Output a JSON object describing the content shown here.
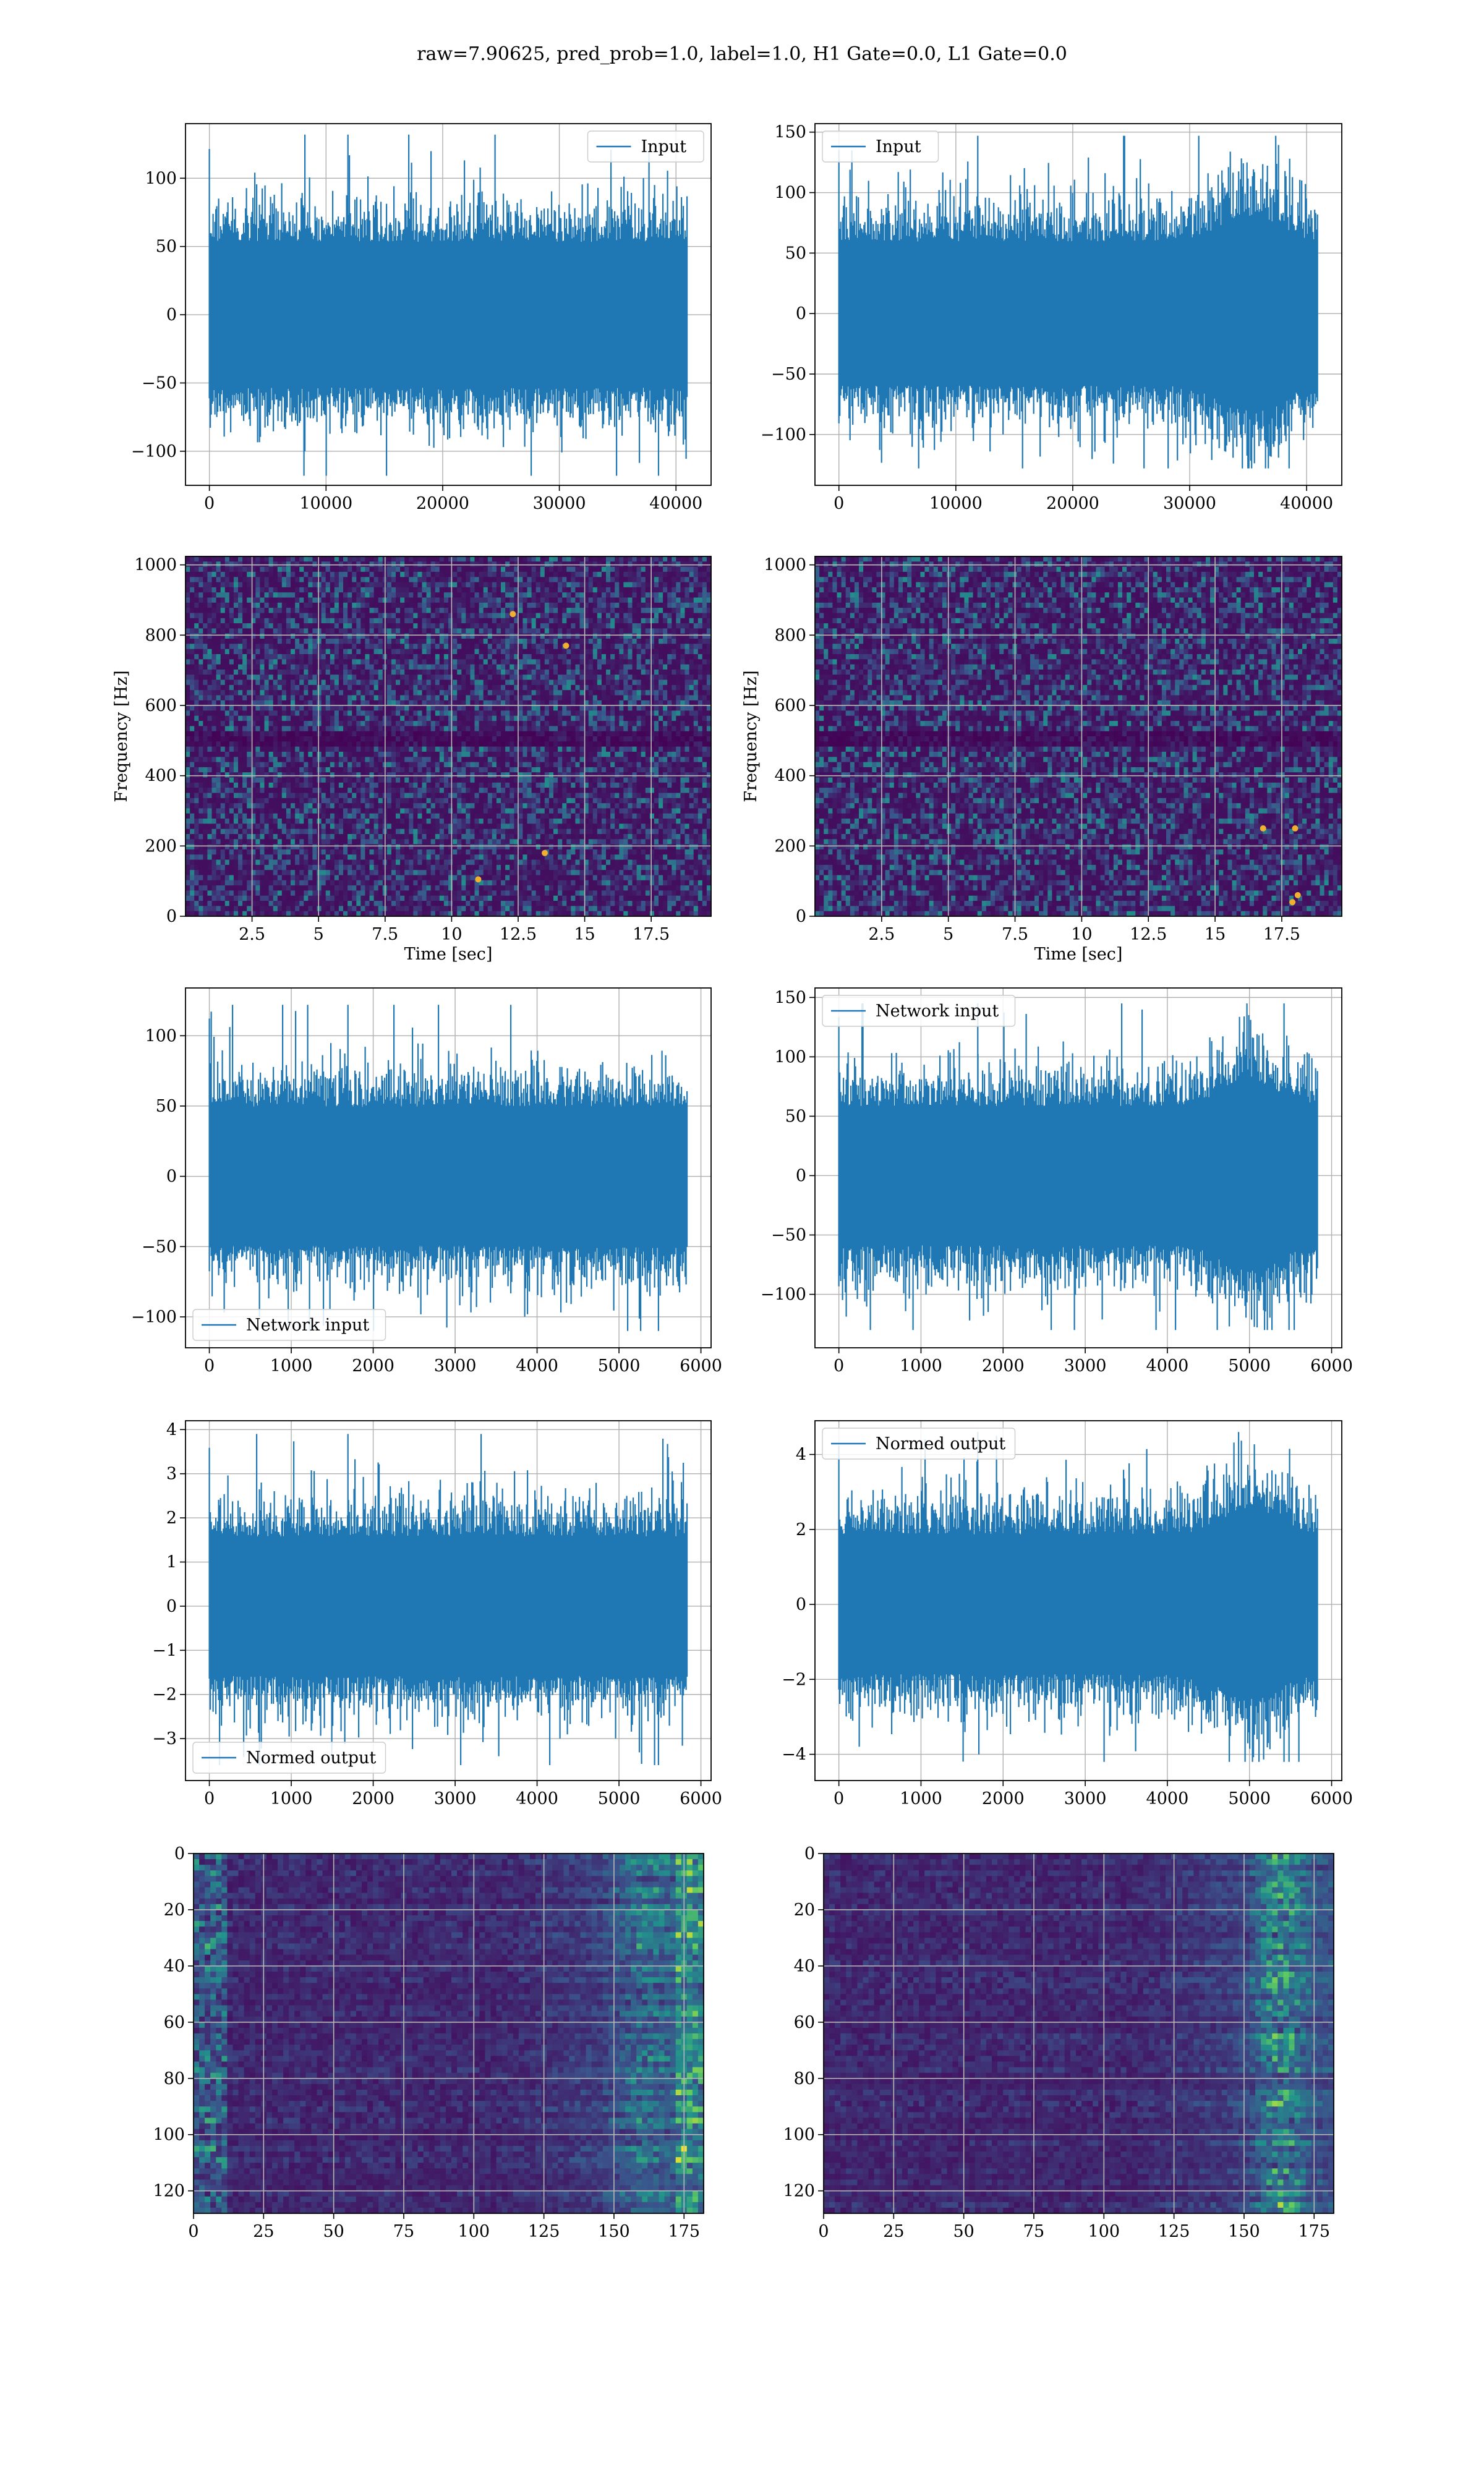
{
  "figure": {
    "title": "raw=7.90625, pred_prob=1.0, label=1.0, H1 Gate=0.0, L1 Gate=0.0",
    "line_color": "#1f77b4",
    "colormap": [
      "#440154",
      "#3b528b",
      "#21918c",
      "#5ec962",
      "#fde725"
    ]
  },
  "chart_data": [
    {
      "type": "line",
      "panel": "row1-left",
      "series": [
        {
          "name": "Input",
          "x_range": [
            0,
            40960
          ],
          "n_samples": 40960,
          "y_min": -118,
          "y_max": 132
        }
      ],
      "xlim": [
        -2048,
        43008
      ],
      "ylim": [
        -125,
        140
      ],
      "xticks": [
        0,
        10000,
        20000,
        30000,
        40000
      ],
      "yticks": [
        -100,
        -50,
        0,
        50,
        100
      ],
      "xlabel": "",
      "ylabel": "",
      "legend": "upper right",
      "grid": true
    },
    {
      "type": "line",
      "panel": "row1-right",
      "series": [
        {
          "name": "Input",
          "x_range": [
            0,
            40960
          ],
          "n_samples": 40960,
          "y_min": -128,
          "y_max": 147
        }
      ],
      "xlim": [
        -2048,
        43008
      ],
      "ylim": [
        -142,
        157
      ],
      "xticks": [
        0,
        10000,
        20000,
        30000,
        40000
      ],
      "yticks": [
        -100,
        -50,
        0,
        50,
        100,
        150
      ],
      "xlabel": "",
      "ylabel": "",
      "legend": "upper left",
      "grid": true
    },
    {
      "type": "heatmap",
      "panel": "row2-left",
      "xlim": [
        0,
        19.75
      ],
      "ylim": [
        0,
        1024
      ],
      "xticks": [
        2.5,
        5.0,
        7.5,
        10.0,
        12.5,
        15.0,
        17.5
      ],
      "yticks": [
        0,
        200,
        400,
        600,
        800,
        1000
      ],
      "xlabel": "Time [sec]",
      "ylabel": "Frequency [Hz]",
      "grid": true,
      "dark_band_hz": 510,
      "hot_spots": [
        [
          11.0,
          105
        ],
        [
          13.5,
          180
        ],
        [
          14.3,
          770
        ],
        [
          12.3,
          860
        ]
      ]
    },
    {
      "type": "heatmap",
      "panel": "row2-right",
      "xlim": [
        0,
        19.75
      ],
      "ylim": [
        0,
        1024
      ],
      "xticks": [
        2.5,
        5.0,
        7.5,
        10.0,
        12.5,
        15.0,
        17.5
      ],
      "yticks": [
        0,
        200,
        400,
        600,
        800,
        1000
      ],
      "xlabel": "Time [sec]",
      "ylabel": "Frequency [Hz]",
      "grid": true,
      "dark_band_hz": 510,
      "hot_spots": [
        [
          18.0,
          250
        ],
        [
          16.8,
          250
        ],
        [
          18.1,
          60
        ],
        [
          17.9,
          40
        ]
      ]
    },
    {
      "type": "line",
      "panel": "row3-left",
      "series": [
        {
          "name": "Network input",
          "x_range": [
            0,
            5832
          ],
          "n_samples": 5832,
          "y_min": -110,
          "y_max": 122
        }
      ],
      "xlim": [
        -291,
        6124
      ],
      "ylim": [
        -122,
        134
      ],
      "xticks": [
        0,
        1000,
        2000,
        3000,
        4000,
        5000,
        6000
      ],
      "yticks": [
        -100,
        -50,
        0,
        50,
        100
      ],
      "xlabel": "",
      "ylabel": "",
      "legend": "lower left",
      "grid": true
    },
    {
      "type": "line",
      "panel": "row3-right",
      "series": [
        {
          "name": "Network input",
          "x_range": [
            0,
            5832
          ],
          "n_samples": 5832,
          "y_min": -130,
          "y_max": 145
        }
      ],
      "xlim": [
        -291,
        6124
      ],
      "ylim": [
        -145,
        158
      ],
      "xticks": [
        0,
        1000,
        2000,
        3000,
        4000,
        5000,
        6000
      ],
      "yticks": [
        -100,
        -50,
        0,
        50,
        100,
        150
      ],
      "xlabel": "",
      "ylabel": "",
      "legend": "upper left",
      "grid": true
    },
    {
      "type": "line",
      "panel": "row4-left",
      "series": [
        {
          "name": "Normed output",
          "x_range": [
            0,
            5832
          ],
          "n_samples": 5832,
          "y_min": -3.6,
          "y_max": 3.9
        }
      ],
      "xlim": [
        -291,
        6124
      ],
      "ylim": [
        -3.95,
        4.2
      ],
      "xticks": [
        0,
        1000,
        2000,
        3000,
        4000,
        5000,
        6000
      ],
      "yticks": [
        -3,
        -2,
        -1,
        0,
        1,
        2,
        3,
        4
      ],
      "xlabel": "",
      "ylabel": "",
      "legend": "lower left",
      "grid": true
    },
    {
      "type": "line",
      "panel": "row4-right",
      "series": [
        {
          "name": "Normed output",
          "x_range": [
            0,
            5832
          ],
          "n_samples": 5832,
          "y_min": -4.2,
          "y_max": 4.6
        }
      ],
      "xlim": [
        -291,
        6124
      ],
      "ylim": [
        -4.7,
        4.9
      ],
      "xticks": [
        0,
        1000,
        2000,
        3000,
        4000,
        5000,
        6000
      ],
      "yticks": [
        -4,
        -2,
        0,
        2,
        4
      ],
      "xlabel": "",
      "ylabel": "",
      "legend": "upper left",
      "grid": true
    },
    {
      "type": "heatmap",
      "panel": "row5-left",
      "xlim": [
        0,
        182
      ],
      "ylim": [
        128,
        0
      ],
      "xticks": [
        0,
        25,
        50,
        75,
        100,
        125,
        150,
        175
      ],
      "yticks": [
        0,
        20,
        40,
        60,
        80,
        100,
        120
      ],
      "xlabel": "",
      "ylabel": "",
      "grid": true
    },
    {
      "type": "heatmap",
      "panel": "row5-right",
      "xlim": [
        0,
        182
      ],
      "ylim": [
        128,
        0
      ],
      "xticks": [
        0,
        25,
        50,
        75,
        100,
        125,
        150,
        175
      ],
      "yticks": [
        0,
        20,
        40,
        60,
        80,
        100,
        120
      ],
      "xlabel": "",
      "ylabel": "",
      "grid": true
    }
  ]
}
